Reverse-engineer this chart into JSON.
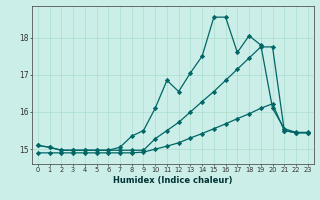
{
  "xlabel": "Humidex (Indice chaleur)",
  "bg_color": "#cceee8",
  "line_color": "#006666",
  "grid_color": "#aaddcc",
  "x": [
    0,
    1,
    2,
    3,
    4,
    5,
    6,
    7,
    8,
    9,
    10,
    11,
    12,
    13,
    14,
    15,
    16,
    17,
    18,
    19,
    20,
    21,
    22,
    23
  ],
  "y_main": [
    15.1,
    15.05,
    14.97,
    14.97,
    14.97,
    14.97,
    14.97,
    15.05,
    15.35,
    15.5,
    16.1,
    16.85,
    16.55,
    17.05,
    17.5,
    18.55,
    18.55,
    17.6,
    18.05,
    17.8,
    16.1,
    15.55,
    15.45,
    15.45
  ],
  "y_low": [
    14.9,
    14.9,
    14.9,
    14.9,
    14.9,
    14.9,
    14.9,
    14.9,
    14.9,
    14.92,
    15.0,
    15.08,
    15.17,
    15.3,
    15.42,
    15.55,
    15.68,
    15.82,
    15.95,
    16.1,
    16.22,
    15.5,
    15.44,
    15.44
  ],
  "y_high": [
    15.1,
    15.05,
    14.97,
    14.97,
    14.97,
    14.97,
    14.97,
    14.97,
    14.97,
    14.97,
    15.28,
    15.5,
    15.72,
    16.0,
    16.28,
    16.55,
    16.85,
    17.15,
    17.45,
    17.75,
    17.75,
    15.5,
    15.44,
    15.44
  ],
  "yticks": [
    15,
    16,
    17,
    18
  ],
  "ylim": [
    14.6,
    18.85
  ],
  "xlim": [
    -0.5,
    23.5
  ],
  "xtick_labels": [
    "0",
    "1",
    "2",
    "3",
    "4",
    "5",
    "6",
    "7",
    "8",
    "9",
    "10",
    "11",
    "12",
    "13",
    "14",
    "15",
    "16",
    "17",
    "18",
    "19",
    "20",
    "21",
    "22",
    "23"
  ],
  "markersize": 2.2,
  "linewidth": 0.9
}
